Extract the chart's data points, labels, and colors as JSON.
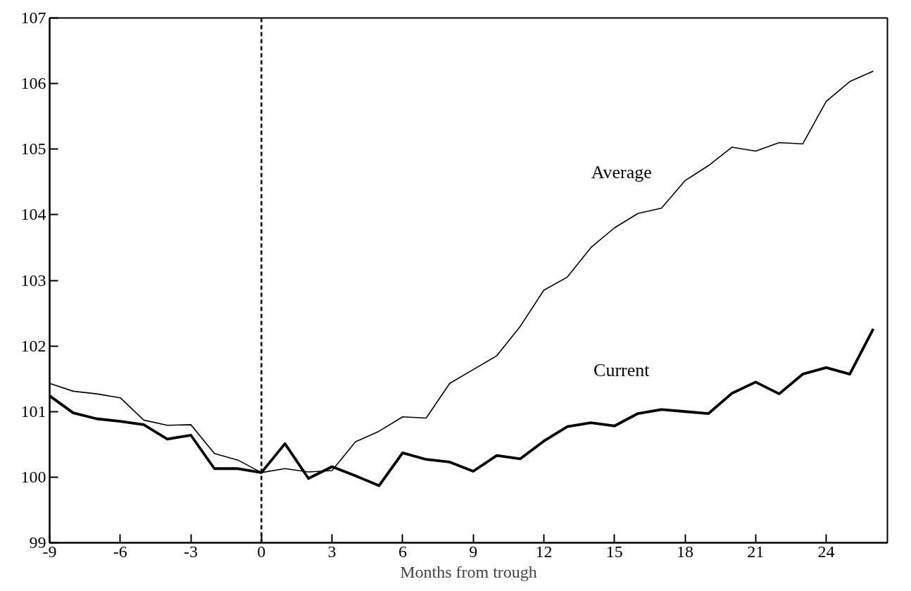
{
  "chart_data": {
    "type": "line",
    "xlabel": "Months from trough",
    "x": [
      -9,
      -8,
      -7,
      -6,
      -5,
      -4,
      -3,
      -2,
      -1,
      0,
      1,
      2,
      3,
      4,
      5,
      6,
      7,
      8,
      9,
      10,
      11,
      12,
      13,
      14,
      15,
      16,
      17,
      18,
      19,
      20,
      21,
      22,
      23,
      24,
      25,
      26
    ],
    "series": [
      {
        "name": "Average",
        "color": "#000000",
        "values": [
          101.43,
          101.31,
          101.27,
          101.21,
          100.87,
          100.79,
          100.8,
          100.36,
          100.26,
          100.07,
          100.13,
          100.08,
          100.1,
          100.54,
          100.7,
          100.92,
          100.9,
          101.43,
          101.64,
          101.85,
          102.3,
          102.85,
          103.05,
          103.5,
          103.8,
          104.02,
          104.1,
          104.52,
          104.75,
          105.03,
          104.97,
          105.1,
          105.08,
          105.73,
          106.03,
          106.19
        ]
      },
      {
        "name": "Current",
        "color": "#000000",
        "values": [
          101.24,
          100.98,
          100.89,
          100.85,
          100.8,
          100.58,
          100.64,
          100.13,
          100.13,
          100.07,
          100.51,
          99.98,
          100.16,
          100.02,
          99.87,
          100.37,
          100.27,
          100.23,
          100.09,
          100.33,
          100.28,
          100.55,
          100.77,
          100.83,
          100.78,
          100.97,
          101.03,
          101.0,
          100.97,
          101.28,
          101.45,
          101.27,
          101.57,
          101.67,
          101.57,
          102.26
        ]
      }
    ],
    "xlim": [
      -9,
      26.6
    ],
    "ylim": [
      99,
      107
    ],
    "xticks": [
      -9,
      -6,
      -3,
      0,
      3,
      6,
      9,
      12,
      15,
      18,
      21,
      24
    ],
    "yticks": [
      99,
      100,
      101,
      102,
      103,
      104,
      105,
      106,
      107
    ],
    "ref_lines": [
      {
        "axis": "x",
        "value": 0,
        "label": null,
        "color": "#000000",
        "line_style": "dashed"
      }
    ],
    "grid": false,
    "legend": false,
    "marker": "none",
    "line_style": "solid"
  }
}
